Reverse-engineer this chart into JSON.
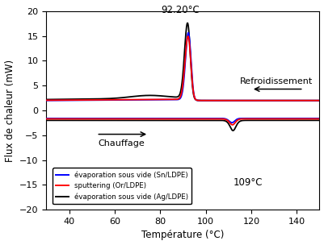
{
  "xlim": [
    30,
    150
  ],
  "ylim": [
    -20,
    20
  ],
  "xlabel": "Température (°C)",
  "ylabel": "Flux de chaleur (mW)",
  "xticks": [
    40,
    60,
    80,
    100,
    120,
    140
  ],
  "yticks": [
    -20,
    -15,
    -10,
    -5,
    0,
    5,
    10,
    15,
    20
  ],
  "annotation_heating": "92.20°C",
  "annotation_cooling": "109°C",
  "label_blue": "évaporation sous vide (Sn/LDPE)",
  "label_red": "sputtering (Or/LDPE)",
  "label_black": "évaporation sous vide (Ag/LDPE)",
  "color_blue": "#0000FF",
  "color_red": "#FF0000",
  "color_black": "#000000",
  "text_chauffage": "Chauffage",
  "text_refroid": "Refroidissement",
  "background_color": "#FFFFFF"
}
